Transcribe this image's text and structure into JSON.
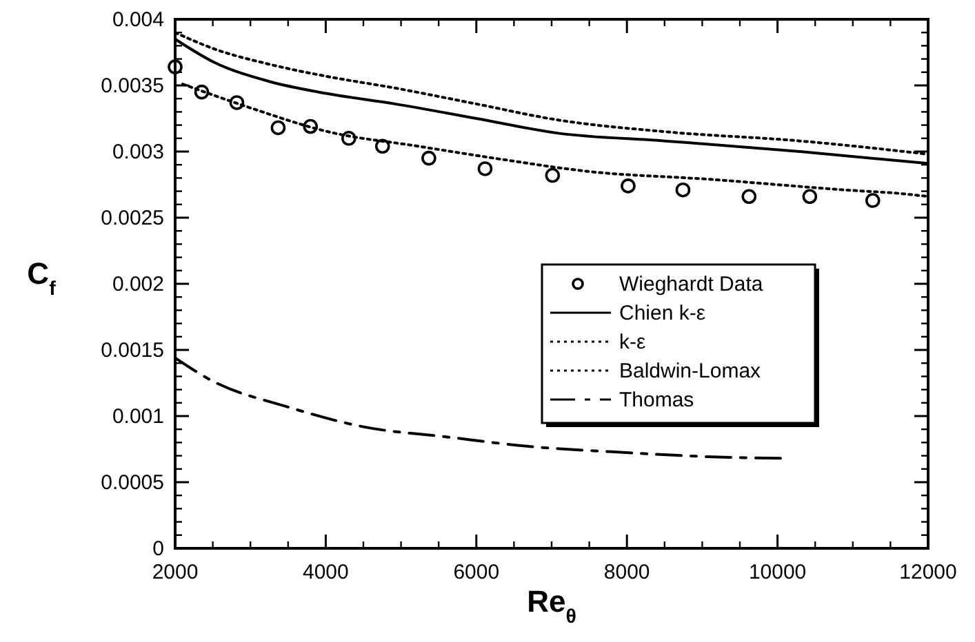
{
  "chart_data": {
    "type": "line",
    "xlabel": "Re$_{θ}$",
    "ylabel": "C$_{f}$",
    "xlim": [
      2000,
      12000
    ],
    "xticks": [
      2000,
      4000,
      6000,
      8000,
      10000,
      12000
    ],
    "ylim": [
      0,
      0.004
    ],
    "yticks": [
      0,
      0.0005,
      0.001,
      0.0015,
      0.002,
      0.0025,
      0.003,
      0.0035,
      0.004
    ],
    "grid": false,
    "legend": "right",
    "series": [
      {
        "name": "Wieghardt Data",
        "type": "scatter",
        "marker": "circle",
        "color": "#000000",
        "x": [
          2000,
          2353,
          2819,
          3368,
          3797,
          4306,
          4754,
          5369,
          6116,
          7012,
          8016,
          8744,
          9622,
          10428,
          11265
        ],
        "values": [
          0.00364,
          0.00345,
          0.00337,
          0.00318,
          0.00319,
          0.0031,
          0.00304,
          0.00295,
          0.00287,
          0.00282,
          0.00274,
          0.00271,
          0.00266,
          0.00266,
          0.00263
        ]
      },
      {
        "name": "Chien k-ε",
        "line_style": "solid",
        "color": "#000000",
        "x": [
          2000,
          2500,
          3250,
          4000,
          4920,
          6000,
          7070,
          8505,
          10300,
          12000
        ],
        "values": [
          0.00385,
          0.00368,
          0.00353,
          0.00344,
          0.00336,
          0.00325,
          0.00314,
          0.00308,
          0.003,
          0.00291
        ]
      },
      {
        "name": "k-ε",
        "line_style": "dotted",
        "color": "#000000",
        "x": [
          2000,
          2500,
          3250,
          4000,
          4920,
          6000,
          7070,
          8505,
          10300,
          12000
        ],
        "values": [
          0.0039,
          0.00378,
          0.00366,
          0.00357,
          0.00348,
          0.00336,
          0.00324,
          0.00315,
          0.00308,
          0.00298
        ]
      },
      {
        "name": "Baldwin-Lomax",
        "line_style": "dotted",
        "color": "#000000",
        "x": [
          2100,
          3000,
          4030,
          5230,
          6350,
          7480,
          9100,
          10890,
          11680,
          12000
        ],
        "values": [
          0.00351,
          0.00333,
          0.00315,
          0.00304,
          0.00294,
          0.00285,
          0.00279,
          0.00271,
          0.00268,
          0.00266
        ]
      },
      {
        "name": "Thomas",
        "line_style": "dashed",
        "color": "#000000",
        "x": [
          2000,
          2480,
          3490,
          4490,
          5640,
          6710,
          7790,
          9220,
          10080
        ],
        "values": [
          0.00144,
          0.00127,
          0.00107,
          0.00092,
          0.00084,
          0.00077,
          0.00073,
          0.00069,
          0.00068
        ]
      }
    ]
  }
}
